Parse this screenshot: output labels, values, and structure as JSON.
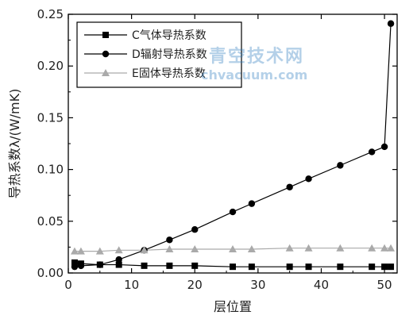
{
  "chart_data": {
    "type": "line",
    "xlabel": "层位置",
    "ylabel": "导热系数λ/(W/mK)",
    "xlim": [
      0,
      52
    ],
    "ylim": [
      0,
      0.25
    ],
    "xticks": [
      0,
      10,
      20,
      30,
      40,
      50
    ],
    "yticks": [
      0.0,
      0.05,
      0.1,
      0.15,
      0.2,
      0.25
    ],
    "xtick_labels": [
      "0",
      "10",
      "20",
      "30",
      "40",
      "50"
    ],
    "ytick_labels": [
      "0.00",
      "0.05",
      "0.10",
      "0.15",
      "0.20",
      "0.25"
    ],
    "grid": false,
    "legend_position": "top-left",
    "series": [
      {
        "name": "C气体导热系数",
        "marker": "square",
        "color": "#000000",
        "x": [
          1,
          2,
          5,
          8,
          12,
          16,
          20,
          26,
          29,
          35,
          38,
          43,
          48,
          50,
          51
        ],
        "y": [
          0.01,
          0.009,
          0.008,
          0.008,
          0.007,
          0.007,
          0.007,
          0.006,
          0.006,
          0.006,
          0.006,
          0.006,
          0.006,
          0.006,
          0.006
        ]
      },
      {
        "name": "D辐射导热系数",
        "marker": "circle",
        "color": "#000000",
        "x": [
          1,
          2,
          5,
          8,
          12,
          16,
          20,
          26,
          29,
          35,
          38,
          43,
          48,
          50,
          51
        ],
        "y": [
          0.006,
          0.007,
          0.008,
          0.013,
          0.022,
          0.032,
          0.042,
          0.059,
          0.067,
          0.083,
          0.091,
          0.104,
          0.117,
          0.122,
          0.241
        ]
      },
      {
        "name": "E固体导热系数",
        "marker": "triangle",
        "color": "#aaaaaa",
        "x": [
          1,
          2,
          5,
          8,
          12,
          16,
          20,
          26,
          29,
          35,
          38,
          43,
          48,
          50,
          51
        ],
        "y": [
          0.021,
          0.021,
          0.021,
          0.022,
          0.022,
          0.023,
          0.023,
          0.023,
          0.023,
          0.024,
          0.024,
          0.024,
          0.024,
          0.024,
          0.024
        ]
      }
    ]
  },
  "watermark": {
    "line1": "青空技术网",
    "line2": "chvacuum.com"
  }
}
